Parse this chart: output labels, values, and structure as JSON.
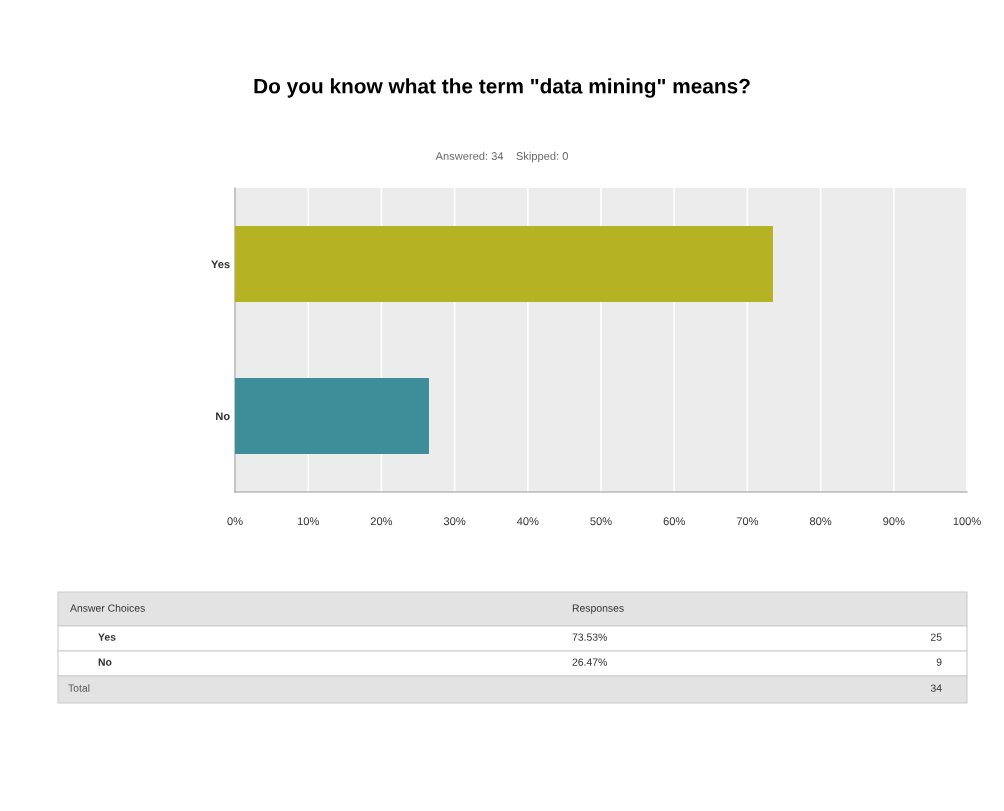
{
  "chart_data": {
    "type": "bar",
    "orientation": "horizontal",
    "title": "Do you know what the term \"data mining\" means?",
    "subtitle": "Answered: 34    Skipped: 0",
    "categories": [
      "Yes",
      "No"
    ],
    "values": [
      73.5,
      26.5
    ],
    "colors": [
      "#b5b324",
      "#3d8e98"
    ],
    "xlim": [
      0,
      100
    ],
    "xticks": [
      {
        "value": 0,
        "label": "0%"
      },
      {
        "value": 10,
        "label": "10%"
      },
      {
        "value": 20,
        "label": "20%"
      },
      {
        "value": 30,
        "label": "30%"
      },
      {
        "value": 40,
        "label": "40%"
      },
      {
        "value": 50,
        "label": "50%"
      },
      {
        "value": 60,
        "label": "60%"
      },
      {
        "value": 70,
        "label": "70%"
      },
      {
        "value": 80,
        "label": "80%"
      },
      {
        "value": 90,
        "label": "90%"
      },
      {
        "value": 100,
        "label": "100%"
      }
    ],
    "grid": "x",
    "annotations": [
      "Answer Choices",
      "Responses",
      "Total",
      "25",
      "9",
      "34",
      "73.53%",
      "26.47%"
    ]
  }
}
